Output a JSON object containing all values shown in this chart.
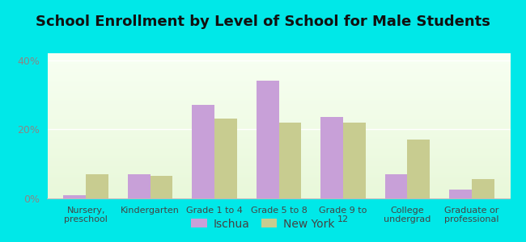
{
  "title": "School Enrollment by Level of School for Male Students",
  "categories": [
    "Nursery,\npreschool",
    "Kindergarten",
    "Grade 1 to 4",
    "Grade 5 to 8",
    "Grade 9 to\n12",
    "College\nundergrad",
    "Graduate or\nprofessional"
  ],
  "ischua": [
    1.0,
    7.0,
    27.0,
    34.0,
    23.5,
    7.0,
    2.5
  ],
  "newyork": [
    7.0,
    6.5,
    23.0,
    22.0,
    22.0,
    17.0,
    5.5
  ],
  "ischua_color": "#c8a0d8",
  "newyork_color": "#c8cc90",
  "ylim": [
    0,
    42
  ],
  "yticks": [
    0,
    20,
    40
  ],
  "ytick_labels": [
    "0%",
    "20%",
    "40%"
  ],
  "background_color": "#00e8e8",
  "title_fontsize": 13,
  "legend_labels": [
    "Ischua",
    "New York"
  ],
  "bar_width": 0.35
}
